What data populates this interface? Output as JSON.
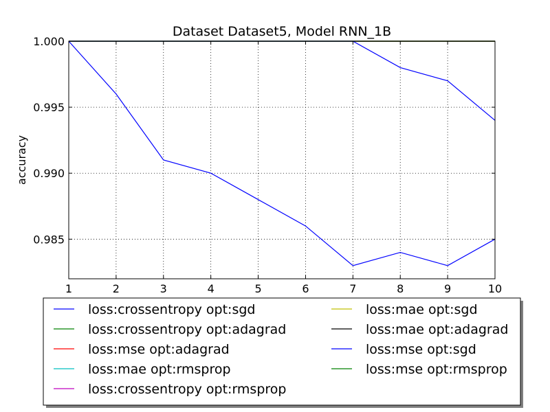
{
  "chart_data": {
    "type": "line",
    "title": "Dataset Dataset5, Model RNN_1B",
    "xlabel": "",
    "ylabel": "accuracy",
    "xlim": [
      1,
      10
    ],
    "ylim": [
      0.982,
      1.0
    ],
    "x_ticks": [
      1,
      2,
      3,
      4,
      5,
      6,
      7,
      8,
      9,
      10
    ],
    "y_ticks": [
      0.985,
      0.99,
      0.995,
      1.0
    ],
    "y_tick_labels": [
      "0.985",
      "0.990",
      "0.995",
      "1.000"
    ],
    "grid": true,
    "legend_placement": "below",
    "legend_columns": 2,
    "x": [
      1,
      2,
      3,
      4,
      5,
      6,
      7,
      8,
      9,
      10
    ],
    "series": [
      {
        "name": "loss:crossentropy opt:sgd",
        "color": "#0000ff",
        "values": [
          1.0,
          0.996,
          0.991,
          0.99,
          0.988,
          0.986,
          0.983,
          0.984,
          0.983,
          0.985
        ]
      },
      {
        "name": "loss:crossentropy opt:adagrad",
        "color": "#008000",
        "values": [
          1.0,
          1.0,
          1.0,
          1.0,
          1.0,
          1.0,
          1.0,
          1.0,
          1.0,
          1.0
        ]
      },
      {
        "name": "loss:mse opt:adagrad",
        "color": "#ff0000",
        "values": [
          1.0,
          1.0,
          1.0,
          1.0,
          1.0,
          1.0,
          1.0,
          1.0,
          1.0,
          1.0
        ]
      },
      {
        "name": "loss:mae opt:rmsprop",
        "color": "#00bfbf",
        "values": [
          1.0,
          1.0,
          1.0,
          1.0,
          1.0,
          1.0,
          1.0,
          1.0,
          1.0,
          1.0
        ]
      },
      {
        "name": "loss:crossentropy opt:rmsprop",
        "color": "#bf00bf",
        "values": [
          1.0,
          1.0,
          1.0,
          1.0,
          1.0,
          1.0,
          1.0,
          1.0,
          1.0,
          1.0
        ]
      },
      {
        "name": "loss:mae opt:sgd",
        "color": "#bfbf00",
        "values": [
          1.0,
          1.0,
          1.0,
          1.0,
          1.0,
          1.0,
          1.0,
          1.0,
          1.0,
          1.0
        ]
      },
      {
        "name": "loss:mae opt:adagrad",
        "color": "#000000",
        "values": [
          1.0,
          1.0,
          1.0,
          1.0,
          1.0,
          1.0,
          1.0,
          1.0,
          1.0,
          1.0
        ]
      },
      {
        "name": "loss:mse opt:sgd",
        "color": "#0000ff",
        "values": [
          1.0,
          1.0,
          1.0,
          1.0,
          1.0,
          1.0,
          1.0,
          0.998,
          0.997,
          0.994
        ]
      },
      {
        "name": "loss:mse opt:rmsprop",
        "color": "#008000",
        "values": [
          1.0,
          1.0,
          1.0,
          1.0,
          1.0,
          1.0,
          1.0,
          1.0,
          1.0,
          1.0
        ]
      }
    ]
  }
}
